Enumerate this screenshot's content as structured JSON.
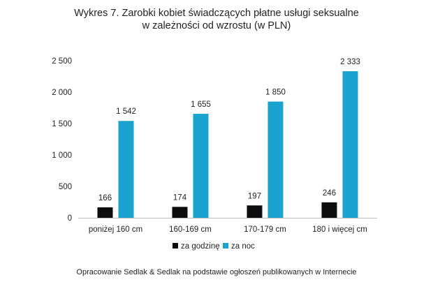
{
  "chart_data": {
    "type": "bar",
    "title_lines": [
      "Wykres 7. Zarobki kobiet świadczących płatne usługi seksualne",
      "w zależności od wzrostu (w PLN)"
    ],
    "categories": [
      "poniżej 160 cm",
      "160-169 cm",
      "170-179 cm",
      "180 i więcej cm"
    ],
    "series": [
      {
        "name": "za godzinę",
        "color": "#0d0d0d",
        "values": [
          166,
          174,
          197,
          246
        ],
        "labels": [
          "166",
          "174",
          "197",
          "246"
        ]
      },
      {
        "name": "za noc",
        "color": "#1aa3cf",
        "values": [
          1542,
          1655,
          1850,
          2333
        ],
        "labels": [
          "1 542",
          "1 655",
          "1 850",
          "2 333"
        ]
      }
    ],
    "ylim": [
      0,
      2500
    ],
    "yticks": [
      0,
      500,
      1000,
      1500,
      2000,
      2500
    ],
    "ytick_labels": [
      "0",
      "500",
      "1 000",
      "1 500",
      "2 000",
      "2 500"
    ],
    "grid": false,
    "legend_position": "bottom",
    "source": "Opracowanie Sedlak & Sedlak na podstawie ogłoszeń publikowanych w Internecie"
  }
}
